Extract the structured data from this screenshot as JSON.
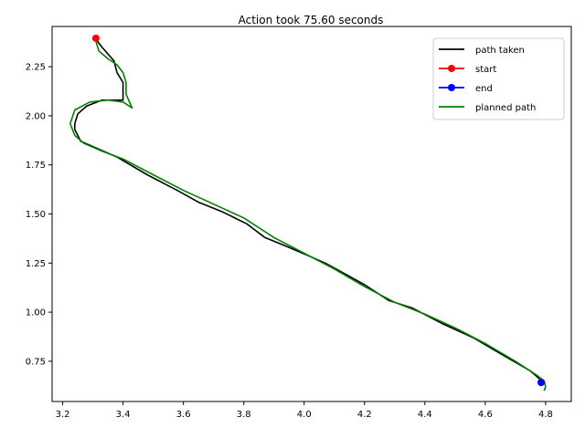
{
  "chart_data": {
    "type": "line",
    "title": "Action took 75.60 seconds",
    "xlabel": "",
    "ylabel": "",
    "xlim": [
      3.165,
      4.885
    ],
    "ylim": [
      0.545,
      2.455
    ],
    "grid": false,
    "legend_position": "top-right",
    "x_ticks": [
      3.2,
      3.4,
      3.6,
      3.8,
      4.0,
      4.2,
      4.4,
      4.6,
      4.8
    ],
    "x_tick_labels": [
      "3.2",
      "3.4",
      "3.6",
      "3.8",
      "4.0",
      "4.2",
      "4.4",
      "4.6",
      "4.8"
    ],
    "y_ticks": [
      0.75,
      1.0,
      1.25,
      1.5,
      1.75,
      2.0,
      2.25
    ],
    "y_tick_labels": [
      "0.75",
      "1.00",
      "1.25",
      "1.50",
      "1.75",
      "2.00",
      "2.25"
    ],
    "series": [
      {
        "name": "path taken",
        "color": "#000000",
        "style": "line",
        "x": [
          3.31,
          3.33,
          3.37,
          3.38,
          3.4,
          3.4,
          3.4,
          3.38,
          3.33,
          3.28,
          3.25,
          3.24,
          3.24,
          3.26,
          3.32,
          3.38,
          3.48,
          3.58,
          3.65,
          3.73,
          3.81,
          3.87,
          3.95,
          4.07,
          4.2,
          4.28,
          4.36,
          4.46,
          4.56,
          4.66,
          4.75,
          4.78
        ],
        "y": [
          2.39,
          2.35,
          2.28,
          2.22,
          2.17,
          2.12,
          2.08,
          2.08,
          2.08,
          2.05,
          2.01,
          1.96,
          1.93,
          1.87,
          1.83,
          1.79,
          1.7,
          1.62,
          1.56,
          1.51,
          1.45,
          1.38,
          1.33,
          1.25,
          1.14,
          1.06,
          1.02,
          0.94,
          0.87,
          0.78,
          0.7,
          0.66
        ]
      },
      {
        "name": "start",
        "color": "#ff0000",
        "style": "marker",
        "x": [
          3.31
        ],
        "y": [
          2.395
        ]
      },
      {
        "name": "end",
        "color": "#0000ff",
        "style": "marker",
        "x": [
          4.785
        ],
        "y": [
          0.642
        ]
      },
      {
        "name": "planned path",
        "color": "#008000",
        "style": "line",
        "x": [
          3.31,
          3.32,
          3.35,
          3.38,
          3.4,
          3.41,
          3.41,
          3.43,
          3.4,
          3.35,
          3.29,
          3.24,
          3.225,
          3.24,
          3.27,
          3.33,
          3.4,
          3.5,
          3.6,
          3.7,
          3.8,
          3.9,
          4.0,
          4.1,
          4.2,
          4.3,
          4.4,
          4.5,
          4.6,
          4.7,
          4.77,
          4.795,
          4.8,
          4.795
        ],
        "y": [
          2.38,
          2.33,
          2.29,
          2.26,
          2.22,
          2.17,
          2.11,
          2.04,
          2.07,
          2.08,
          2.07,
          2.03,
          1.96,
          1.9,
          1.86,
          1.82,
          1.78,
          1.7,
          1.62,
          1.55,
          1.48,
          1.38,
          1.3,
          1.22,
          1.13,
          1.05,
          0.99,
          0.92,
          0.84,
          0.75,
          0.68,
          0.65,
          0.62,
          0.6
        ]
      }
    ]
  }
}
